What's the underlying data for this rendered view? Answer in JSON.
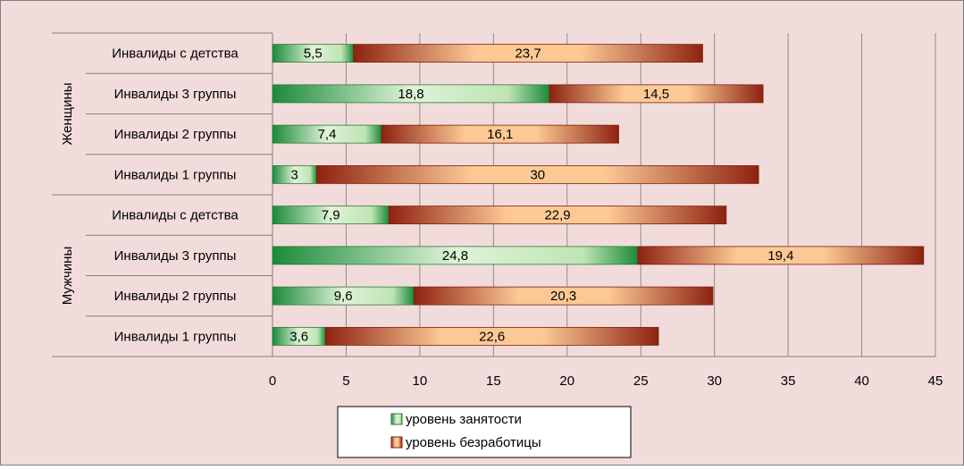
{
  "chart_data": {
    "type": "bar",
    "orientation": "horizontal",
    "stacked": true,
    "groups": [
      {
        "name": "Женщины",
        "categories": [
          "Инвалиды с детства",
          "Инвалиды 3 группы",
          "Инвалиды 2 группы",
          "Инвалиды 1 группы"
        ]
      },
      {
        "name": "Мужчины",
        "categories": [
          "Инвалиды с детства",
          "Инвалиды 3 группы",
          "Инвалиды 2 группы",
          "Инвалиды 1 группы"
        ]
      }
    ],
    "series": [
      {
        "name": "уровень занятости",
        "values": [
          5.5,
          18.8,
          7.4,
          3,
          7.9,
          24.8,
          9.6,
          3.6
        ],
        "labels": [
          "5,5",
          "18,8",
          "7,4",
          "3",
          "7,9",
          "24,8",
          "9,6",
          "3,6"
        ],
        "color": "#1e8a3a"
      },
      {
        "name": "уровень безработицы",
        "values": [
          23.7,
          14.5,
          16.1,
          30,
          22.9,
          19.4,
          20.3,
          22.6
        ],
        "labels": [
          "23,7",
          "14,5",
          "16,1",
          "30",
          "22,9",
          "19,4",
          "20,3",
          "22,6"
        ],
        "color": "#9b2a12"
      }
    ],
    "xlim": [
      0,
      45
    ],
    "xticks": [
      0,
      5,
      10,
      15,
      20,
      25,
      30,
      35,
      40,
      45
    ],
    "grid": true,
    "legend_position": "bottom",
    "background": "#f2dcdb"
  }
}
